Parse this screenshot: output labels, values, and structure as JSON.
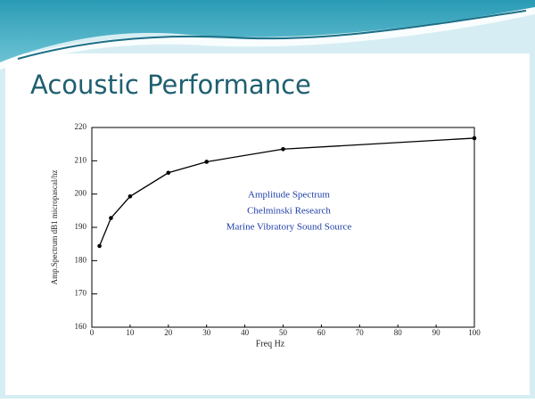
{
  "chart_data": {
    "type": "line",
    "title": "Acoustic Performance",
    "x_label": "Freq Hz",
    "y_label": "Amp.Spectrum dB1 micropascal/hz",
    "annotations": [
      "Amplitude Spectrum",
      "Chelminski Research",
      "Marine Vibratory Sound Source"
    ],
    "annotation_color": "#1f3fa8",
    "x": [
      2,
      5,
      10,
      20,
      30,
      50,
      100
    ],
    "series": [
      {
        "color": "#000000",
        "values": [
          184.4,
          192.8,
          199.3,
          206.4,
          209.7,
          213.5,
          216.8
        ]
      }
    ],
    "xlim": [
      0,
      100
    ],
    "xticks": [
      0,
      10,
      20,
      30,
      40,
      50,
      60,
      70,
      80,
      90,
      100
    ],
    "ylim": [
      160,
      220
    ],
    "yticks": [
      160,
      170,
      180,
      190,
      200,
      210,
      220
    ]
  }
}
